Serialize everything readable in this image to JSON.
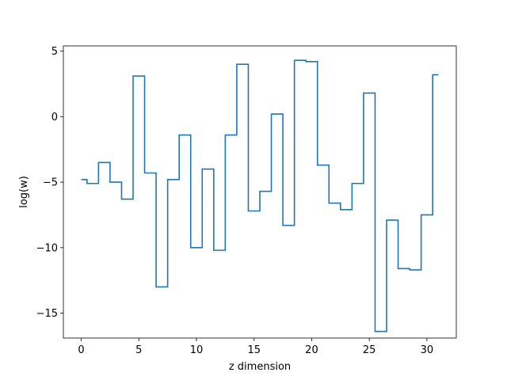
{
  "chart_data": {
    "type": "line",
    "drawstyle": "steps-mid",
    "title": "",
    "xlabel": "z dimension",
    "ylabel": "log(w)",
    "xlim": [
      -1.55,
      32.55
    ],
    "ylim": [
      -16.9,
      5.4
    ],
    "grid": false,
    "legend": "none",
    "xticks": [
      0,
      5,
      10,
      15,
      20,
      25,
      30
    ],
    "xtick_labels": [
      "0",
      "5",
      "10",
      "15",
      "20",
      "25",
      "30"
    ],
    "yticks": [
      5,
      0,
      -5,
      -10,
      -15
    ],
    "ytick_labels": [
      "5",
      "0",
      "−5",
      "−10",
      "−15"
    ],
    "series": [
      {
        "color": "#1f77b4",
        "x": [
          0,
          1,
          2,
          3,
          4,
          5,
          6,
          7,
          8,
          9,
          10,
          11,
          12,
          13,
          14,
          15,
          16,
          17,
          18,
          19,
          20,
          21,
          22,
          23,
          24,
          25,
          26,
          27,
          28,
          29,
          30,
          31
        ],
        "y": [
          -4.8,
          -5.1,
          -3.5,
          -5.0,
          -6.3,
          3.1,
          -4.3,
          -13.0,
          -4.8,
          -1.4,
          -10.0,
          -4.0,
          -10.2,
          -1.4,
          4.0,
          -7.2,
          -5.7,
          0.2,
          -8.3,
          4.3,
          4.2,
          -3.7,
          -6.6,
          -7.1,
          -5.1,
          1.8,
          -16.4,
          -7.9,
          -11.6,
          -11.7,
          -7.5,
          3.2
        ]
      }
    ]
  }
}
